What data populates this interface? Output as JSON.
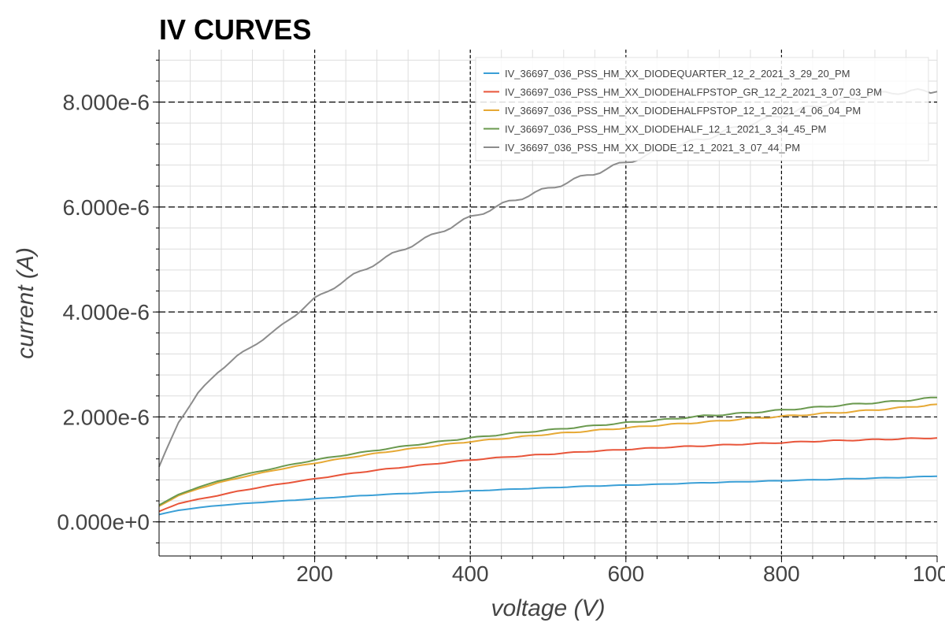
{
  "chart_data": {
    "type": "line",
    "title": "IV CURVES",
    "xlabel": "voltage (V)",
    "ylabel": "current (A)",
    "xlim": [
      0,
      1000
    ],
    "ylim": [
      -6.5e-07,
      9e-06
    ],
    "grid": true,
    "legend_position": "top-right",
    "x_ticks": [
      200,
      400,
      600,
      800,
      1000
    ],
    "x_tick_labels": [
      "200",
      "400",
      "600",
      "800",
      "1000"
    ],
    "y_ticks": [
      0,
      2e-06,
      4e-06,
      6e-06,
      8e-06
    ],
    "y_tick_labels": [
      "0.000e+0",
      "2.000e-6",
      "4.000e-6",
      "6.000e-6",
      "8.000e-6"
    ],
    "x": [
      0,
      25,
      50,
      75,
      100,
      150,
      200,
      250,
      300,
      350,
      400,
      450,
      500,
      550,
      600,
      650,
      700,
      750,
      800,
      850,
      900,
      950,
      1000
    ],
    "series": [
      {
        "name": "IV_36697_036_PSS_HM_XX_DIODEQUARTER_12_2_2021_3_29_20_PM",
        "color": "#3a9fd6",
        "values": [
          1.4e-07,
          2.2e-07,
          2.7e-07,
          3.1e-07,
          3.4e-07,
          3.9e-07,
          4.4e-07,
          4.9e-07,
          5.3e-07,
          5.6e-07,
          5.9e-07,
          6.2e-07,
          6.5e-07,
          6.8e-07,
          7e-07,
          7.2e-07,
          7.45e-07,
          7.65e-07,
          7.85e-07,
          8.05e-07,
          8.25e-07,
          8.45e-07,
          8.7e-07
        ]
      },
      {
        "name": "IV_36697_036_PSS_HM_XX_DIODEHALFPSTOP_GR_12_2_2021_3_07_03_PM",
        "color": "#e8553a",
        "values": [
          2e-07,
          3.5e-07,
          4.3e-07,
          5e-07,
          5.8e-07,
          7.1e-07,
          8.2e-07,
          9.3e-07,
          1.02e-06,
          1.1e-06,
          1.18e-06,
          1.24e-06,
          1.29e-06,
          1.34e-06,
          1.38e-06,
          1.42e-06,
          1.45e-06,
          1.48e-06,
          1.51e-06,
          1.54e-06,
          1.56e-06,
          1.58e-06,
          1.6e-06
        ]
      },
      {
        "name": "IV_36697_036_PSS_HM_XX_DIODEHALFPSTOP_12_1_2021_4_06_04_PM",
        "color": "#e6a935",
        "values": [
          3e-07,
          5e-07,
          6.3e-07,
          7.4e-07,
          8.3e-07,
          9.9e-07,
          1.12e-06,
          1.24e-06,
          1.35e-06,
          1.44e-06,
          1.53e-06,
          1.6e-06,
          1.67e-06,
          1.73e-06,
          1.79e-06,
          1.85e-06,
          1.9e-06,
          1.96e-06,
          2.01e-06,
          2.06e-06,
          2.11e-06,
          2.17e-06,
          2.24e-06
        ]
      },
      {
        "name": "IV_36697_036_PSS_HM_XX_DIODEHALF_12_1_2021_3_34_45_PM",
        "color": "#6a994e",
        "values": [
          3.2e-07,
          5.2e-07,
          6.6e-07,
          7.7e-07,
          8.7e-07,
          1.03e-06,
          1.18e-06,
          1.3e-06,
          1.41e-06,
          1.51e-06,
          1.6e-06,
          1.68e-06,
          1.75e-06,
          1.82e-06,
          1.89e-06,
          1.95e-06,
          2.02e-06,
          2.07e-06,
          2.13e-06,
          2.19e-06,
          2.25e-06,
          2.3e-06,
          2.37e-06
        ]
      },
      {
        "name": "IV_36697_036_PSS_HM_XX_DIODE_12_1_2021_3_07_44_PM",
        "color": "#8c8c8c",
        "values": [
          1.05e-06,
          1.9e-06,
          2.45e-06,
          2.85e-06,
          3.15e-06,
          3.65e-06,
          4.25e-06,
          4.7e-06,
          5.1e-06,
          5.45e-06,
          5.8e-06,
          6.1e-06,
          6.35e-06,
          6.6e-06,
          6.85e-06,
          7.1e-06,
          7.3e-06,
          7.55e-06,
          7.75e-06,
          7.95e-06,
          8.1e-06,
          8.2e-06,
          8.2e-06
        ]
      }
    ]
  }
}
